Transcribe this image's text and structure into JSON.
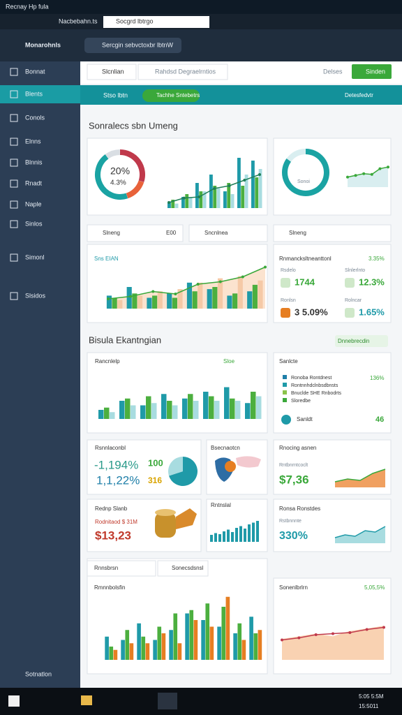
{
  "window": {
    "title": "Recnay Hp fula"
  },
  "browser": {
    "address": "Nacbebahn.ts",
    "tab": "Socgrd lbtrgo"
  },
  "header": {
    "app": "Monarohnls",
    "search": "Sercgin sebvctoxbr lbtnW"
  },
  "sidebar": {
    "items": [
      "Bonnat",
      "Blents",
      "Conols",
      "Elnns",
      "Blnnis",
      "Rnadt",
      "Naple",
      "Sinlos",
      "Simonl",
      "Slsidos"
    ],
    "footer": "Sotnatlon"
  },
  "toolbar": {
    "tab": "Slcnlian",
    "search": "Rahdsd Degraelrntios",
    "filter": "Delses",
    "button": "Sinden"
  },
  "tabs": {
    "items": [
      "Stso lbtn",
      "Tachhe Sntebetrs"
    ],
    "right": "Detesfedvtr"
  },
  "section1": {
    "title": "Sonralecs sbn Umeng"
  },
  "donut": {
    "labels": [
      "20%",
      "4.3%"
    ],
    "segments": [
      {
        "color": "#c0394b",
        "value": 30
      },
      {
        "color": "#e8623a",
        "value": 15
      },
      {
        "color": "#1aa3a3",
        "value": 45
      },
      {
        "color": "#d9dee3",
        "value": 10
      }
    ]
  },
  "top_bars": {
    "series": [
      {
        "color": "#1f9aa8",
        "values": [
          10,
          20,
          45,
          60,
          30,
          90,
          85
        ]
      },
      {
        "color": "#4caf3f",
        "values": [
          15,
          25,
          30,
          40,
          45,
          40,
          55
        ]
      },
      {
        "color": "#a8dce0",
        "values": [
          8,
          20,
          30,
          35,
          25,
          60,
          70
        ]
      }
    ],
    "line": [
      10,
      18,
      20,
      35,
      40,
      50,
      60
    ]
  },
  "ring": {
    "label": "Sonoi",
    "value": 85
  },
  "right_line": [
    30,
    35,
    40,
    38,
    55,
    60
  ],
  "pills": [
    "Slneng",
    "E00",
    "Sncnlnea",
    "Slneng"
  ],
  "card_c": {
    "title": "Sns EIAN",
    "series": [
      {
        "color": "#1f9aa8",
        "values": [
          30,
          50,
          25,
          35,
          60,
          45,
          30,
          40
        ]
      },
      {
        "color": "#4caf3f",
        "values": [
          25,
          35,
          30,
          25,
          40,
          50,
          35,
          55
        ]
      },
      {
        "color": "#f5c9a6",
        "values": [
          20,
          30,
          40,
          45,
          60,
          70,
          75,
          65
        ]
      }
    ],
    "line": [
      20,
      25,
      35,
      30,
      50,
      55,
      65,
      85
    ]
  },
  "card_d": {
    "title": "Rnmancksltneanttonl",
    "badge": "3.35%",
    "stats": [
      {
        "label": "Rsdelo",
        "value": "1744"
      },
      {
        "label": "Slnlerlnto",
        "value": "12.3%"
      },
      {
        "label": "Ronlsn",
        "value": "3 5.09%"
      },
      {
        "label": "Rolncar",
        "value": "1.65%"
      }
    ]
  },
  "section2": {
    "title": "Bisula Ekantngian",
    "button": "Dnnebrecdin"
  },
  "card_e": {
    "title": "Rancnlelp",
    "tag": "Sloe",
    "series": [
      {
        "color": "#1f9aa8",
        "values": [
          20,
          40,
          30,
          55,
          45,
          60,
          70,
          35
        ]
      },
      {
        "color": "#4caf3f",
        "values": [
          25,
          45,
          50,
          40,
          55,
          50,
          45,
          60
        ]
      },
      {
        "color": "#a8dce0",
        "values": [
          15,
          30,
          35,
          30,
          40,
          40,
          40,
          50
        ]
      }
    ]
  },
  "card_f": {
    "title": "Sanlcte",
    "legend": [
      "Ronoba Rontdnest",
      "Rontnnhdclnbsdbnsts",
      "Bnuclde SHE Rnbodrts",
      "Sloredbe"
    ],
    "badge": "136%",
    "footer": "Sanldt",
    "footer_value": "46"
  },
  "card_g1": {
    "title": "Rsnnlaconbl",
    "values": [
      "-1,194%",
      "1,1,22%"
    ],
    "small": [
      "100",
      "316"
    ],
    "pie": [
      70,
      30
    ]
  },
  "card_g2": {
    "title": "Bsecnaotcn"
  },
  "card_g3": {
    "title": "Rnocing asnen",
    "sub": "Rntbnrntcoclt",
    "value": "$7,36",
    "area": [
      20,
      30,
      25,
      50,
      65
    ]
  },
  "card_h1": {
    "title": "Rednp Slanb",
    "sub": "Rodnitaod $ 31M",
    "value": "$13,23"
  },
  "card_h2": {
    "title": "Rntnslal",
    "bars": [
      20,
      25,
      22,
      30,
      35,
      28,
      40,
      45,
      38,
      50,
      55,
      60
    ]
  },
  "card_h3": {
    "title": "Ronsa Ronstdes",
    "sub": "Rstbnnnte",
    "value": "330%",
    "area": [
      20,
      30,
      25,
      45,
      40,
      60
    ]
  },
  "card_i1": {
    "tab1": "Rnnsbrsn",
    "tab2": "Sonecsdsnsl",
    "title": "Rmnnbolsfin",
    "series": [
      {
        "color": "#1f9aa8",
        "values": [
          35,
          30,
          55,
          30,
          45,
          70,
          60,
          50,
          40,
          65
        ]
      },
      {
        "color": "#4caf3f",
        "values": [
          20,
          45,
          35,
          50,
          70,
          75,
          85,
          80,
          55,
          40
        ]
      },
      {
        "color": "#e67e22",
        "values": [
          15,
          25,
          25,
          40,
          25,
          60,
          50,
          95,
          30,
          45
        ]
      }
    ]
  },
  "card_i2": {
    "title": "Sonenlbrlrn",
    "badge": "5,05,5%",
    "area": [
      40,
      45,
      50,
      45,
      55,
      60,
      65
    ],
    "line": [
      38,
      42,
      48,
      50,
      52,
      58,
      62
    ]
  },
  "taskbar": {
    "time": "5:05 5:5M",
    "date": "15:5011"
  }
}
